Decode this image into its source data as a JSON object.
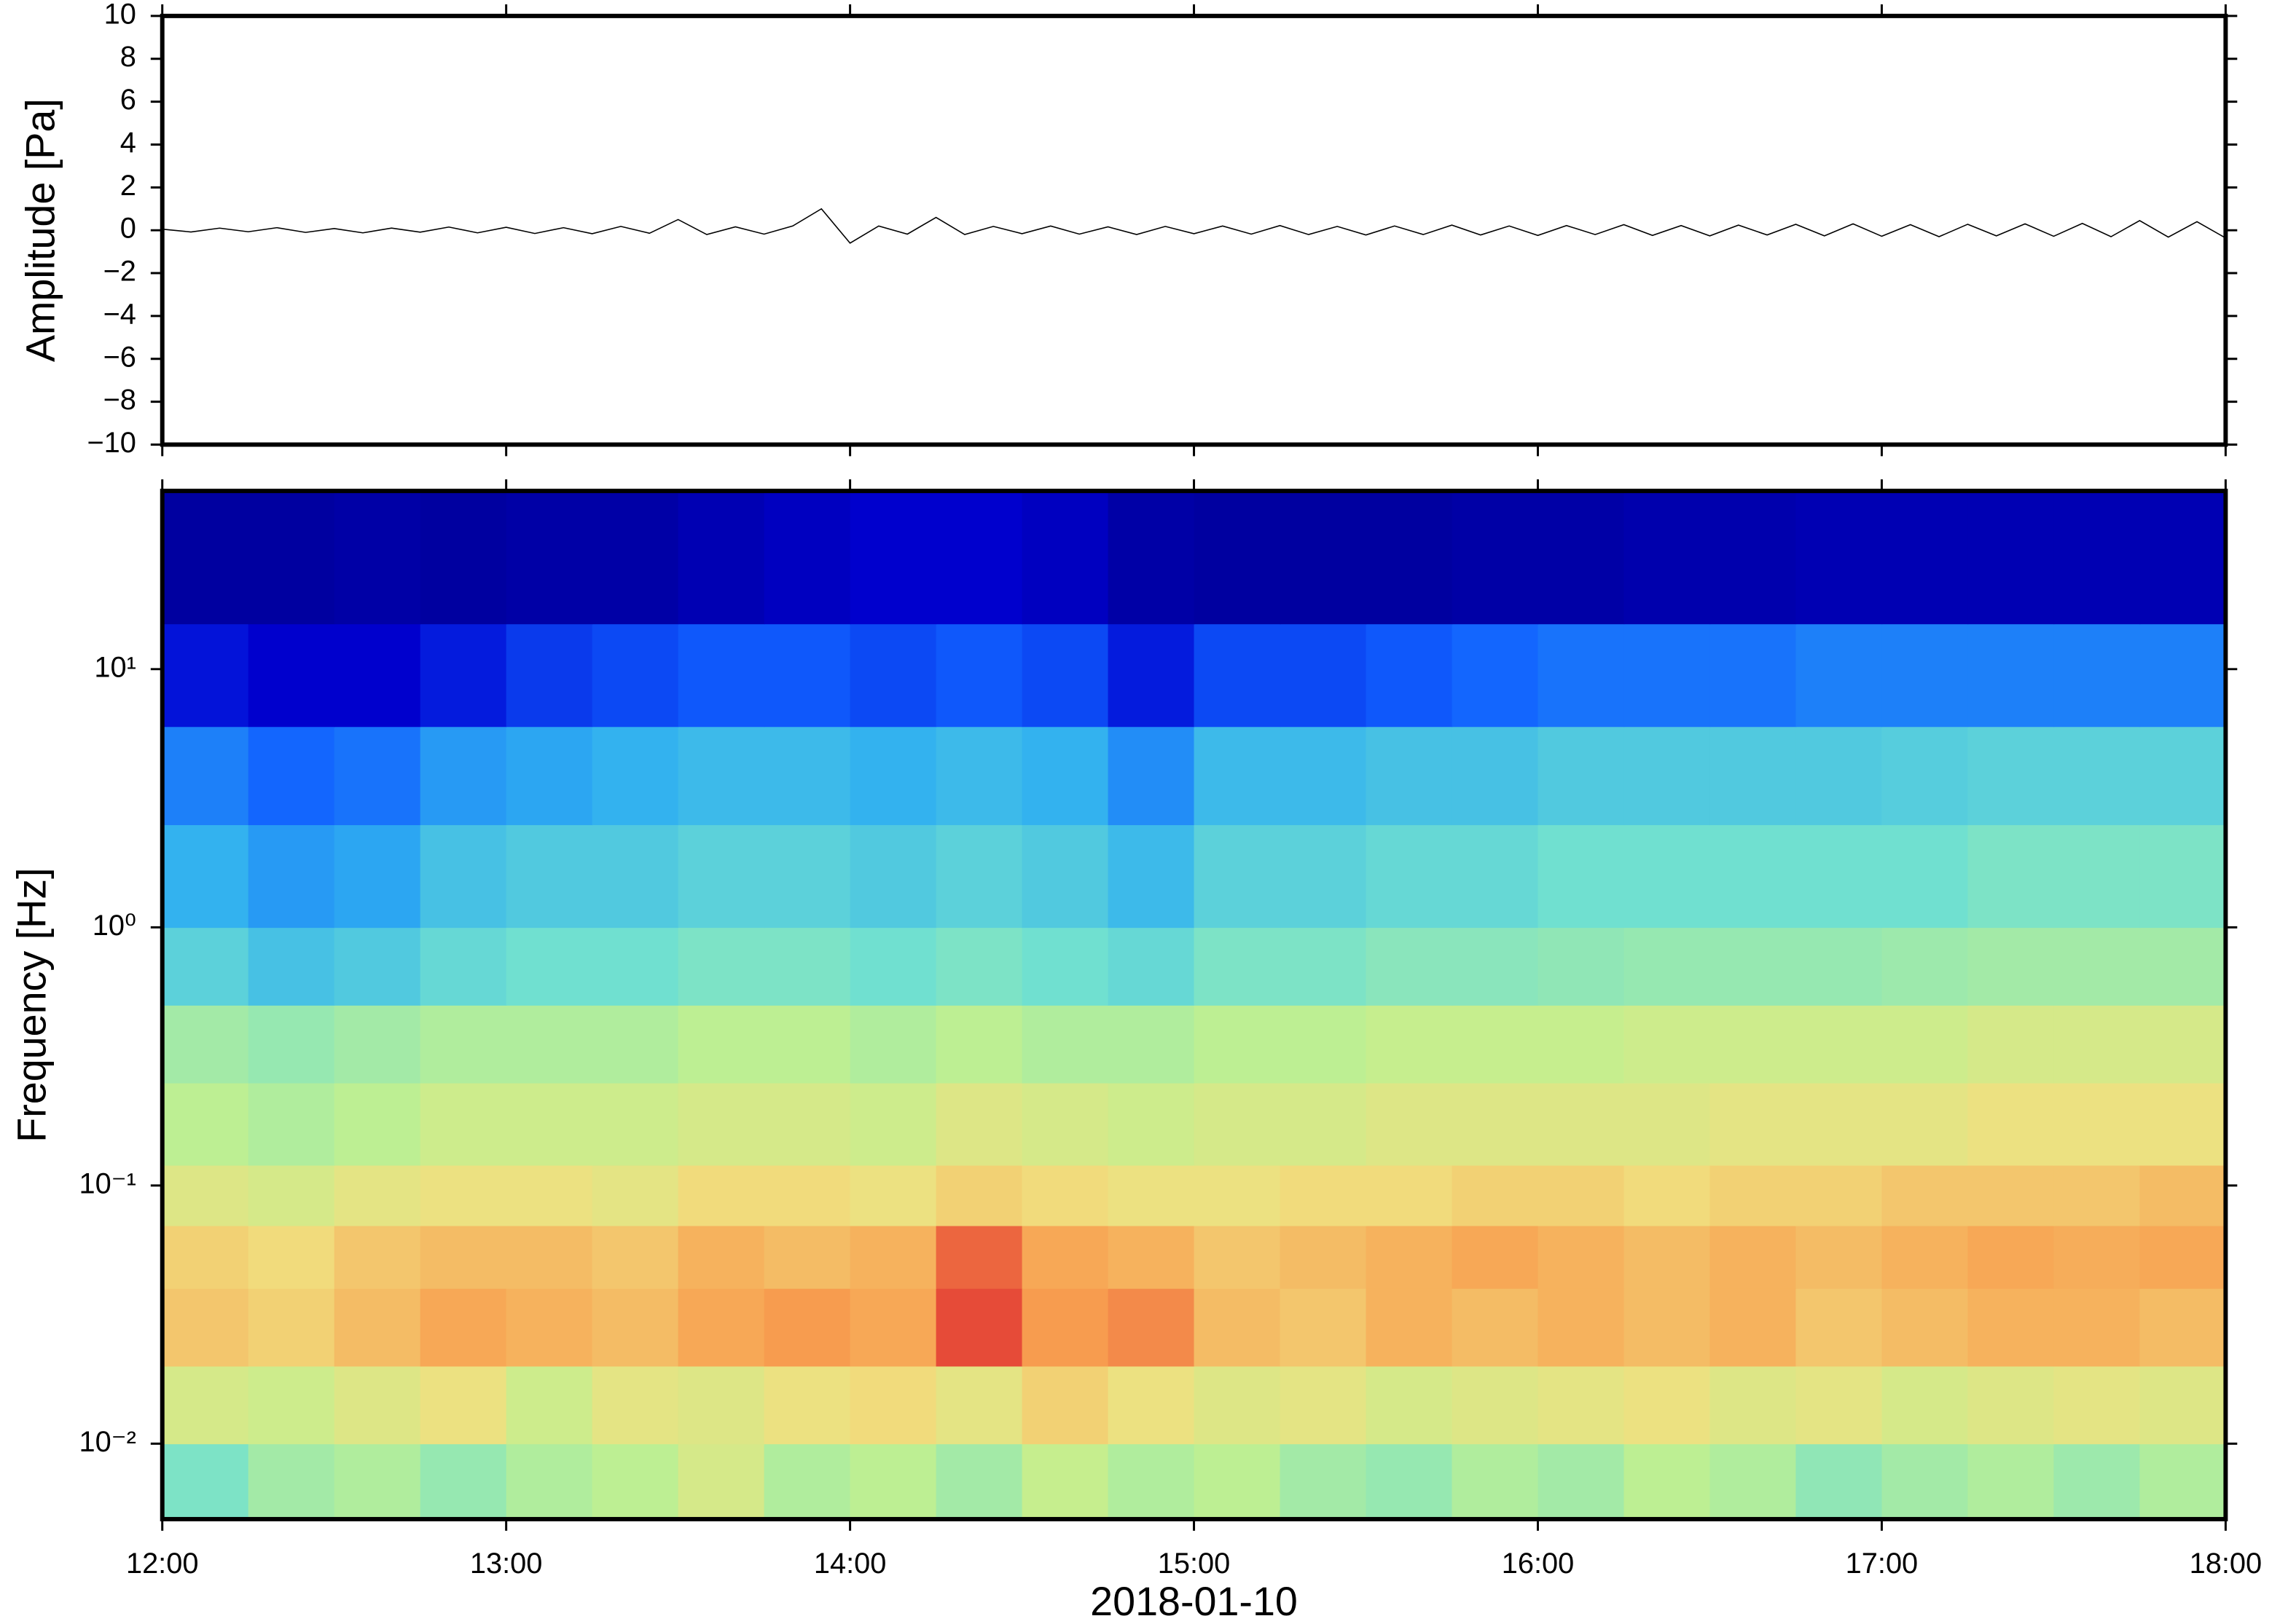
{
  "chart_data": [
    {
      "type": "line",
      "ylabel": "Amplitude [Pa]",
      "color": "#000000",
      "xlim": [
        "12:00",
        "18:00"
      ],
      "xticks": [
        "12:00",
        "13:00",
        "14:00",
        "15:00",
        "16:00",
        "17:00",
        "18:00"
      ],
      "ylim": [
        -10,
        10
      ],
      "yticks": [
        {
          "value": -10,
          "label": "−10"
        },
        {
          "value": -8,
          "label": "−8"
        },
        {
          "value": -6,
          "label": "−6"
        },
        {
          "value": -4,
          "label": "−4"
        },
        {
          "value": -2,
          "label": "−2"
        },
        0,
        2,
        4,
        6,
        8,
        10
      ],
      "x": [
        "12:00",
        "12:05",
        "12:10",
        "12:15",
        "12:20",
        "12:25",
        "12:30",
        "12:35",
        "12:40",
        "12:45",
        "12:50",
        "12:55",
        "13:00",
        "13:05",
        "13:10",
        "13:15",
        "13:20",
        "13:25",
        "13:30",
        "13:35",
        "13:40",
        "13:45",
        "13:50",
        "13:55",
        "14:00",
        "14:05",
        "14:10",
        "14:15",
        "14:20",
        "14:25",
        "14:30",
        "14:35",
        "14:40",
        "14:45",
        "14:50",
        "14:55",
        "15:00",
        "15:05",
        "15:10",
        "15:15",
        "15:20",
        "15:25",
        "15:30",
        "15:35",
        "15:40",
        "15:45",
        "15:50",
        "15:55",
        "16:00",
        "16:05",
        "16:10",
        "16:15",
        "16:20",
        "16:25",
        "16:30",
        "16:35",
        "16:40",
        "16:45",
        "16:50",
        "16:55",
        "17:00",
        "17:05",
        "17:10",
        "17:15",
        "17:20",
        "17:25",
        "17:30",
        "17:35",
        "17:40",
        "17:45",
        "17:50",
        "17:55",
        "18:00"
      ],
      "values": [
        0.05,
        -0.08,
        0.1,
        -0.07,
        0.12,
        -0.1,
        0.08,
        -0.12,
        0.1,
        -0.09,
        0.15,
        -0.12,
        0.14,
        -0.15,
        0.12,
        -0.16,
        0.18,
        -0.14,
        0.5,
        -0.2,
        0.16,
        -0.18,
        0.2,
        1.0,
        -0.6,
        0.2,
        -0.18,
        0.6,
        -0.2,
        0.18,
        -0.16,
        0.2,
        -0.18,
        0.16,
        -0.2,
        0.18,
        -0.16,
        0.2,
        -0.18,
        0.22,
        -0.2,
        0.18,
        -0.22,
        0.2,
        -0.2,
        0.24,
        -0.22,
        0.2,
        -0.24,
        0.22,
        -0.2,
        0.26,
        -0.24,
        0.22,
        -0.26,
        0.24,
        -0.22,
        0.28,
        -0.26,
        0.3,
        -0.28,
        0.26,
        -0.3,
        0.28,
        -0.26,
        0.3,
        -0.28,
        0.32,
        -0.3,
        0.45,
        -0.32,
        0.4,
        -0.36
      ]
    },
    {
      "type": "heatmap",
      "ylabel": "Frequency [Hz]",
      "xlabel": "2018-01-10",
      "log_y": true,
      "xlim": [
        "12:00",
        "18:00"
      ],
      "xticks": [
        "12:00",
        "13:00",
        "14:00",
        "15:00",
        "16:00",
        "17:00",
        "18:00"
      ],
      "ylim": [
        0.0051,
        49
      ],
      "yticks": [
        {
          "value": 0.01,
          "label": "10⁻²"
        },
        {
          "value": 0.1,
          "label": "10⁻¹"
        },
        {
          "value": 1,
          "label": "10⁰"
        },
        {
          "value": 10,
          "label": "10¹"
        }
      ],
      "colors": [
        "#000080",
        "#0000d0",
        "#1060ff",
        "#30b0f0",
        "#70e0d0",
        "#c0f090",
        "#f0e080",
        "#f8a050",
        "#e03030"
      ],
      "x": [
        "12:00",
        "12:15",
        "12:30",
        "12:45",
        "13:00",
        "13:15",
        "13:30",
        "13:45",
        "14:00",
        "14:15",
        "14:30",
        "14:45",
        "15:00",
        "15:15",
        "15:30",
        "15:45",
        "16:00",
        "16:15",
        "16:30",
        "16:45",
        "17:00",
        "17:15",
        "17:30",
        "17:45",
        "18:00"
      ],
      "y": [
        0.0051,
        0.01,
        0.02,
        0.04,
        0.07,
        0.12,
        0.25,
        0.5,
        1,
        2.5,
        6,
        15,
        49
      ],
      "z": [
        [
          0.52,
          0.58,
          0.6,
          0.56,
          0.6,
          0.62,
          0.68,
          0.6,
          0.62,
          0.58,
          0.64,
          0.6,
          0.62,
          0.58,
          0.56,
          0.6,
          0.58,
          0.62,
          0.6,
          0.55,
          0.58,
          0.6,
          0.57,
          0.6
        ],
        [
          0.68,
          0.66,
          0.7,
          0.74,
          0.66,
          0.72,
          0.7,
          0.74,
          0.76,
          0.72,
          0.78,
          0.74,
          0.7,
          0.72,
          0.68,
          0.7,
          0.72,
          0.74,
          0.7,
          0.72,
          0.68,
          0.7,
          0.72,
          0.7
        ],
        [
          0.8,
          0.78,
          0.82,
          0.86,
          0.84,
          0.82,
          0.86,
          0.88,
          0.86,
          0.97,
          0.88,
          0.9,
          0.82,
          0.8,
          0.84,
          0.82,
          0.84,
          0.82,
          0.84,
          0.8,
          0.82,
          0.84,
          0.84,
          0.82
        ],
        [
          0.78,
          0.76,
          0.8,
          0.82,
          0.82,
          0.8,
          0.84,
          0.82,
          0.84,
          0.94,
          0.86,
          0.84,
          0.8,
          0.82,
          0.84,
          0.86,
          0.84,
          0.82,
          0.84,
          0.82,
          0.84,
          0.86,
          0.85,
          0.86
        ],
        [
          0.7,
          0.68,
          0.72,
          0.74,
          0.74,
          0.72,
          0.76,
          0.76,
          0.74,
          0.78,
          0.76,
          0.74,
          0.74,
          0.76,
          0.76,
          0.78,
          0.78,
          0.76,
          0.78,
          0.78,
          0.8,
          0.8,
          0.8,
          0.82
        ],
        [
          0.62,
          0.6,
          0.62,
          0.66,
          0.66,
          0.66,
          0.68,
          0.68,
          0.66,
          0.7,
          0.68,
          0.66,
          0.68,
          0.68,
          0.7,
          0.7,
          0.7,
          0.7,
          0.72,
          0.72,
          0.72,
          0.74,
          0.74,
          0.74
        ],
        [
          0.58,
          0.56,
          0.58,
          0.6,
          0.6,
          0.6,
          0.62,
          0.62,
          0.6,
          0.62,
          0.6,
          0.6,
          0.62,
          0.62,
          0.64,
          0.64,
          0.64,
          0.66,
          0.66,
          0.66,
          0.66,
          0.68,
          0.68,
          0.68
        ],
        [
          0.46,
          0.42,
          0.44,
          0.48,
          0.5,
          0.5,
          0.52,
          0.52,
          0.5,
          0.52,
          0.5,
          0.48,
          0.52,
          0.52,
          0.54,
          0.54,
          0.55,
          0.56,
          0.56,
          0.56,
          0.57,
          0.58,
          0.58,
          0.58
        ],
        [
          0.38,
          0.34,
          0.36,
          0.42,
          0.44,
          0.44,
          0.46,
          0.46,
          0.44,
          0.46,
          0.44,
          0.4,
          0.46,
          0.46,
          0.48,
          0.48,
          0.5,
          0.5,
          0.5,
          0.5,
          0.5,
          0.52,
          0.52,
          0.52
        ],
        [
          0.3,
          0.26,
          0.28,
          0.34,
          0.36,
          0.38,
          0.4,
          0.4,
          0.38,
          0.4,
          0.38,
          0.32,
          0.4,
          0.4,
          0.42,
          0.42,
          0.44,
          0.44,
          0.44,
          0.44,
          0.45,
          0.46,
          0.46,
          0.46
        ],
        [
          0.15,
          0.12,
          0.12,
          0.16,
          0.2,
          0.22,
          0.24,
          0.24,
          0.22,
          0.24,
          0.22,
          0.16,
          0.22,
          0.22,
          0.24,
          0.26,
          0.28,
          0.28,
          0.28,
          0.3,
          0.3,
          0.3,
          0.3,
          0.3
        ],
        [
          0.05,
          0.05,
          0.06,
          0.05,
          0.06,
          0.06,
          0.08,
          0.1,
          0.12,
          0.12,
          0.1,
          0.06,
          0.05,
          0.05,
          0.05,
          0.06,
          0.06,
          0.07,
          0.07,
          0.08,
          0.08,
          0.08,
          0.08,
          0.08
        ]
      ]
    }
  ]
}
